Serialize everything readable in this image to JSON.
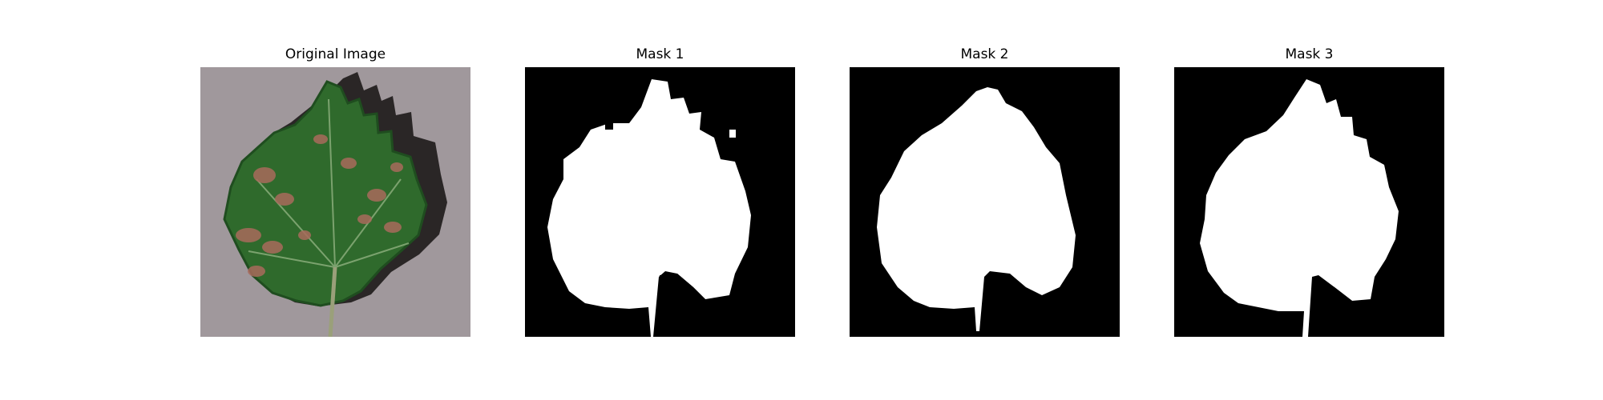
{
  "panels": [
    {
      "title": "Original Image",
      "kind": "photo"
    },
    {
      "title": "Mask 1",
      "kind": "mask"
    },
    {
      "title": "Mask 2",
      "kind": "mask"
    },
    {
      "title": "Mask 3",
      "kind": "mask"
    }
  ],
  "colors": {
    "background": "#ffffff",
    "mask_background": "#000000",
    "mask_foreground": "#ffffff",
    "photo_background": "#9a9296",
    "leaf_green": "#2f6a2c",
    "leaf_dark": "#1f4d1f",
    "lesion": "#a86a5c",
    "shadow": "#2a2626",
    "stem": "#9aa07a"
  }
}
